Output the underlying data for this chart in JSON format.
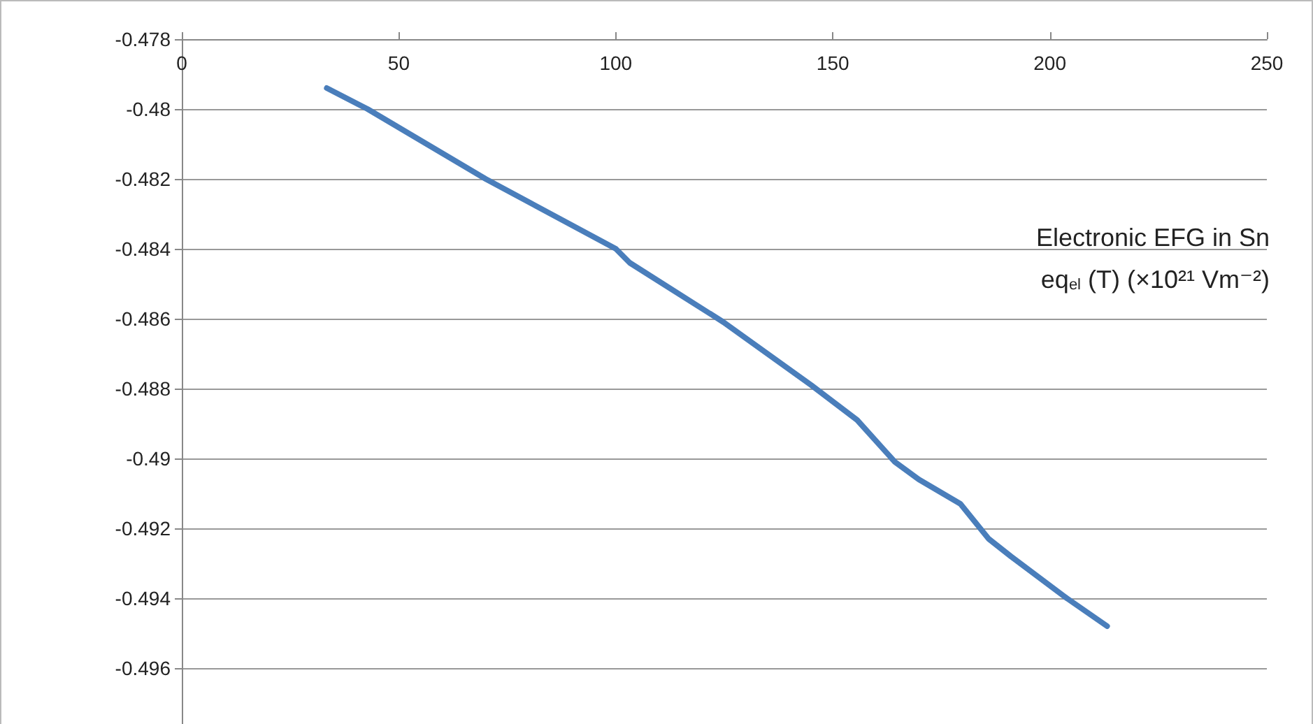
{
  "chart_data": {
    "type": "line",
    "x": [
      33.4,
      42.8,
      70,
      100,
      103.2,
      124.8,
      145,
      155.6,
      164.3,
      169.8,
      179.4,
      185.9,
      191,
      203.9,
      213.2
    ],
    "series": [
      {
        "color": "#4a7ebb",
        "values": [
          -0.4794,
          -0.48,
          -0.482,
          -0.484,
          -0.4844,
          -0.4861,
          -0.4879,
          -0.4889,
          -0.4901,
          -0.4906,
          -0.4913,
          -0.4923,
          -0.4928,
          -0.494,
          -0.4948
        ]
      }
    ],
    "xlim": [
      0,
      250
    ],
    "xticks": [
      0,
      50,
      100,
      150,
      200,
      250
    ],
    "ylim": [
      -0.4976,
      -0.478
    ],
    "yticks": [
      -0.496,
      -0.494,
      -0.492,
      -0.49,
      -0.488,
      -0.486,
      -0.484,
      -0.482,
      -0.48,
      -0.478
    ],
    "grid": "y",
    "marker": "none",
    "line_style": "solid",
    "annotations": [
      "Electronic EFG in Sn",
      "eq$_{el}$ (T) (×10²¹ Vm⁻²)"
    ]
  }
}
